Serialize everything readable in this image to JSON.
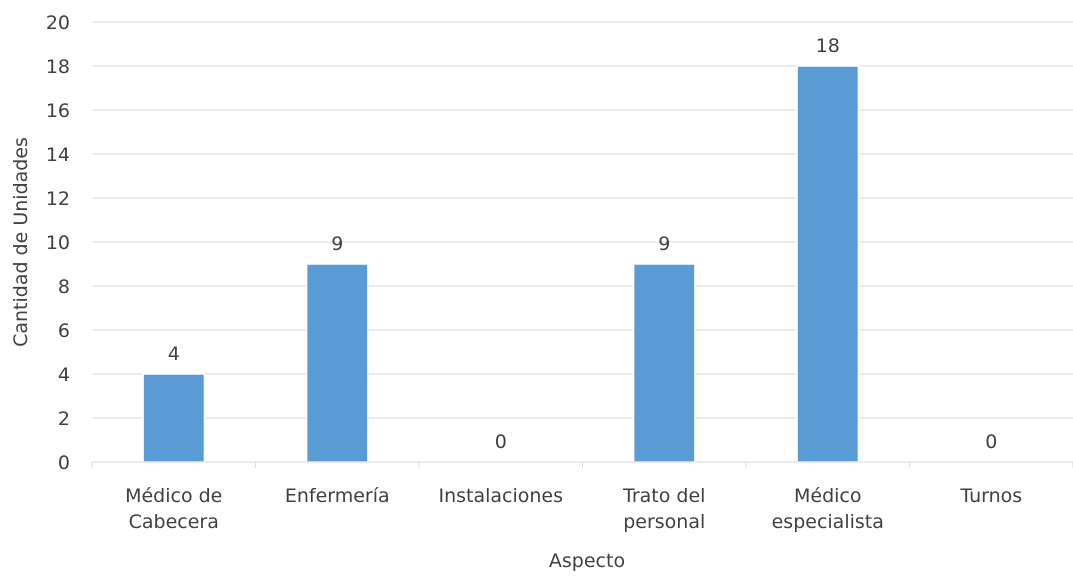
{
  "chart_data": {
    "type": "bar",
    "categories": [
      [
        "Médico de",
        "Cabecera"
      ],
      [
        "Enfermería"
      ],
      [
        "Instalaciones"
      ],
      [
        "Trato del",
        "personal"
      ],
      [
        "Médico",
        "especialista"
      ],
      [
        "Turnos"
      ]
    ],
    "values": [
      4,
      9,
      0,
      9,
      18,
      0
    ],
    "xlabel": "Aspecto",
    "ylabel": "Cantidad de Unidades",
    "ylim": [
      0,
      20
    ],
    "yticks": [
      "0",
      "2",
      "4",
      "6",
      "8",
      "10",
      "12",
      "14",
      "16",
      "18",
      "20"
    ],
    "data_labels": [
      "4",
      "9",
      "0",
      "9",
      "18",
      "0"
    ],
    "grid": true,
    "legend": "none",
    "bar_color": "#5B9BD5",
    "grid_color": "#D9D9D9",
    "text_color": "#404040"
  }
}
